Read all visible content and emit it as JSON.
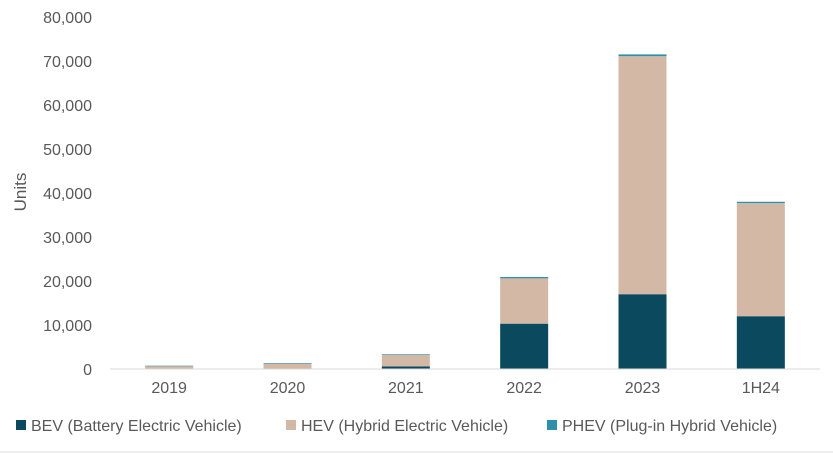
{
  "chart_data": {
    "type": "bar",
    "stacked": true,
    "categories": [
      "2019",
      "2020",
      "2021",
      "2022",
      "2023",
      "1H24"
    ],
    "series": [
      {
        "name": "BEV (Battery Electric Vehicle)",
        "color": "#0b4a5e",
        "values": [
          50,
          100,
          600,
          10300,
          17000,
          12000
        ]
      },
      {
        "name": "HEV (Hybrid Electric Vehicle)",
        "color": "#d3b8a6",
        "values": [
          650,
          1100,
          2600,
          10300,
          54100,
          25700
        ]
      },
      {
        "name": "PHEV (Plug-in Hybrid Vehicle)",
        "color": "#2e8fad",
        "values": [
          50,
          150,
          150,
          300,
          400,
          300
        ]
      }
    ],
    "ylabel": "Units",
    "xlabel": "",
    "ylim": [
      0,
      80000
    ],
    "yticks": [
      "0",
      "10,000",
      "20,000",
      "30,000",
      "40,000",
      "50,000",
      "60,000",
      "70,000",
      "80,000"
    ],
    "grid": false,
    "legend": "bottom"
  }
}
